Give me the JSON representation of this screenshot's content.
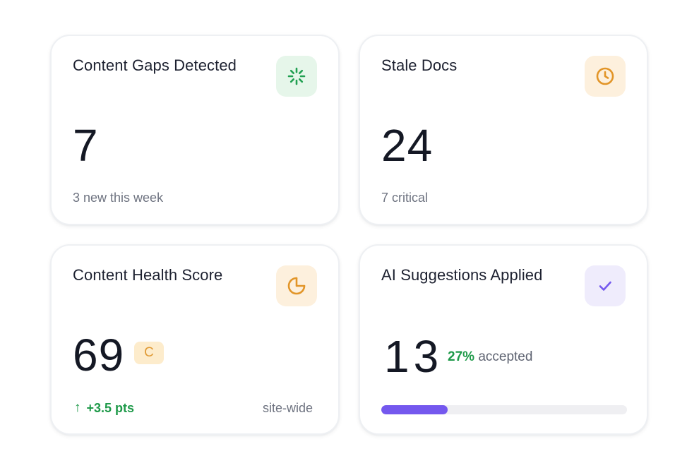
{
  "cards": {
    "gaps": {
      "title": "Content Gaps Detected",
      "value": "7",
      "sub": "3 new this week",
      "icon": "loader-icon",
      "accent": "#22a052"
    },
    "stale": {
      "title": "Stale Docs",
      "value": "24",
      "sub": "7 critical",
      "icon": "clock-icon",
      "accent": "#e29528"
    },
    "health": {
      "title": "Content Health Score",
      "value": "69",
      "grade": "C",
      "delta_arrow": "↑",
      "delta": "+3.5 pts",
      "scope": "site-wide",
      "icon": "pie-chart-icon",
      "accent": "#e29528"
    },
    "ai": {
      "title": "AI Suggestions Applied",
      "value": "13",
      "accepted_pct": "27%",
      "accepted_label": "accepted",
      "progress": 0.27,
      "icon": "check-icon",
      "accent": "#7458ee"
    }
  }
}
